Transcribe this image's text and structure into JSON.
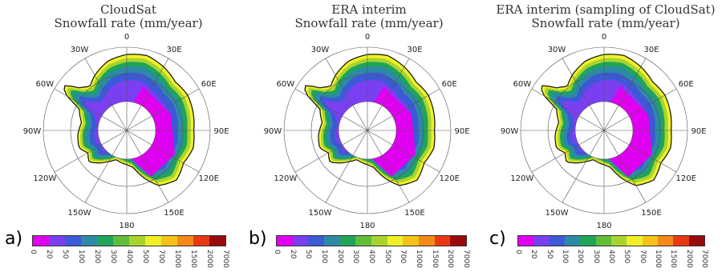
{
  "panels": [
    {
      "letter": "a)",
      "title_line1": "CloudSat",
      "title_line2": "Snowfall rate (mm/year)"
    },
    {
      "letter": "b)",
      "title_line1": "ERA interim",
      "title_line2": "Snowfall rate (mm/year)"
    },
    {
      "letter": "c)",
      "title_line1": "ERA interim (sampling of CloudSat)",
      "title_line2": "Snowfall rate (mm/year)"
    }
  ],
  "longitude_labels": [
    "0",
    "30E",
    "60E",
    "90E",
    "120E",
    "150E",
    "180",
    "150W",
    "120W",
    "90W",
    "60W",
    "30W"
  ],
  "colorbar": {
    "ticks": [
      "0",
      "20",
      "50",
      "100",
      "200",
      "300",
      "400",
      "500",
      "700",
      "1000",
      "1500",
      "2000",
      "7000"
    ],
    "colors": [
      "#e000f0",
      "#7b3ff2",
      "#3c59d6",
      "#2c8aa6",
      "#1fa45a",
      "#62bd3a",
      "#a8d42c",
      "#f0f02a",
      "#f5c21a",
      "#f48a18",
      "#e83a12",
      "#9a0a0a"
    ]
  }
}
